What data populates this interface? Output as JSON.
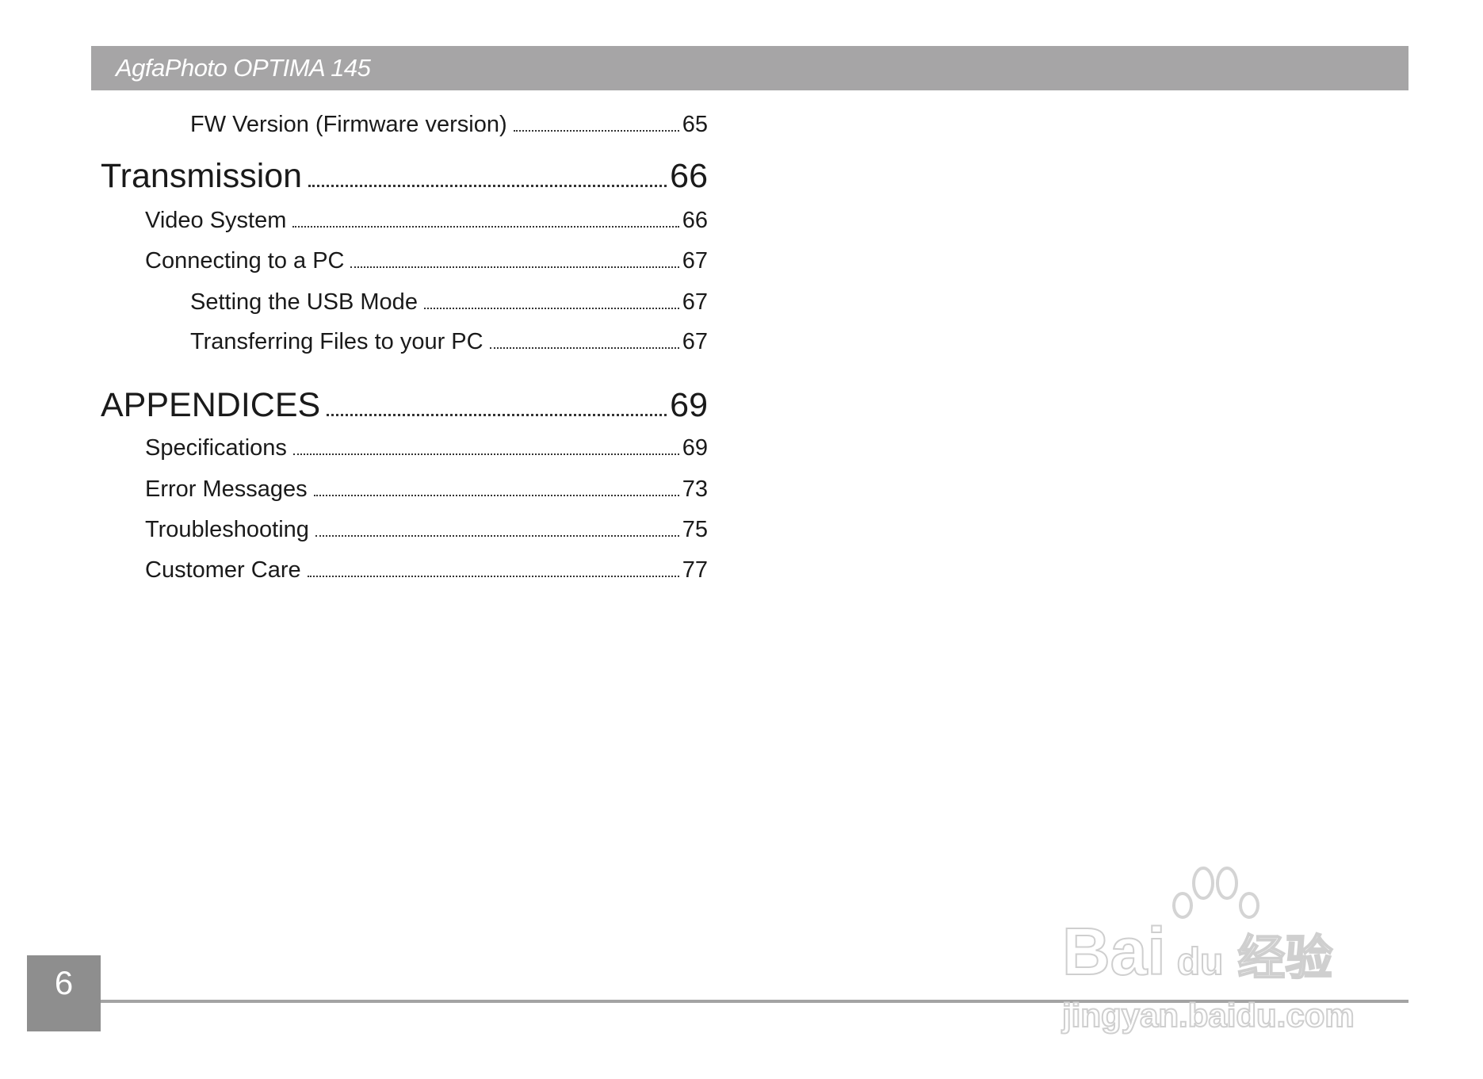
{
  "header": {
    "title": "AgfaPhoto OPTIMA 145"
  },
  "toc": [
    {
      "label": "FW Version (Firmware version)",
      "page": "65",
      "level": 3
    },
    {
      "label": "Transmission",
      "page": "66",
      "level": 1
    },
    {
      "label": "Video System",
      "page": "66",
      "level": 2
    },
    {
      "label": "Connecting to a PC",
      "page": "67",
      "level": 2
    },
    {
      "label": "Setting the USB Mode",
      "page": "67",
      "level": 3
    },
    {
      "label": "Transferring Files to your PC",
      "page": "67",
      "level": 3
    },
    {
      "label": "APPENDICES",
      "page": "69",
      "level": 1
    },
    {
      "label": "Specifications",
      "page": "69",
      "level": 2
    },
    {
      "label": "Error Messages",
      "page": "73",
      "level": 2
    },
    {
      "label": "Troubleshooting",
      "page": "75",
      "level": 2
    },
    {
      "label": "Customer Care",
      "page": "77",
      "level": 2
    }
  ],
  "footer": {
    "page_number": "6"
  },
  "watermark": {
    "brand": "Bai du 经验",
    "url": "jingyan.baidu.com"
  }
}
